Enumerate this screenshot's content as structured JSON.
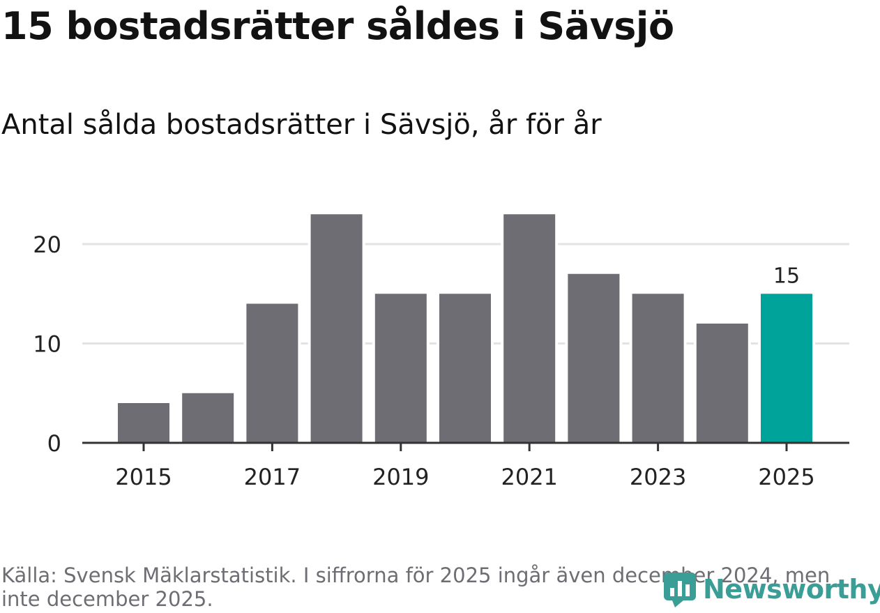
{
  "title": "15 bostadsrätter såldes i Sävsjö",
  "subtitle": "Antal sålda bostadsrätter i Sävsjö, år för år",
  "source": "Källa: Svensk Mäklarstatistik. I siffrorna för 2025 ingår även december 2024, men inte december 2025.",
  "brand": {
    "name": "Newsworthy",
    "color": "#3a9e97"
  },
  "colors": {
    "bar": "#6e6d73",
    "highlight": "#00a39a",
    "grid": "#e3e3e3",
    "axis": "#333333"
  },
  "chart_data": {
    "type": "bar",
    "title": "15 bostadsrätter såldes i Sävsjö",
    "subtitle": "Antal sålda bostadsrätter i Sävsjö, år för år",
    "xlabel": "",
    "ylabel": "",
    "categories": [
      "2015",
      "2016",
      "2017",
      "2018",
      "2019",
      "2020",
      "2021",
      "2022",
      "2023",
      "2024",
      "2025"
    ],
    "values": [
      4,
      5,
      14,
      23,
      15,
      15,
      23,
      17,
      15,
      12,
      15
    ],
    "highlight_index": 10,
    "highlight_label": "15",
    "x_tick_labels": [
      "2015",
      "2017",
      "2019",
      "2021",
      "2023",
      "2025"
    ],
    "y_ticks": [
      0,
      10,
      20
    ],
    "ylim": [
      0,
      23
    ],
    "grid": true
  }
}
